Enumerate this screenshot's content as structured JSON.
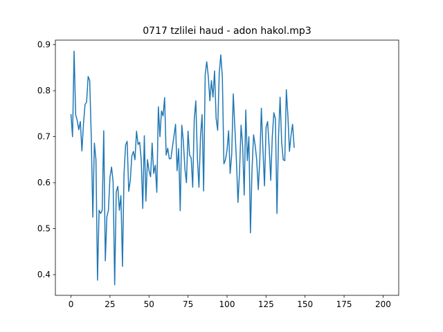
{
  "chart_data": {
    "type": "line",
    "title": "0717 tzlilei haud - adon hakol.mp3",
    "xlabel": "",
    "ylabel": "",
    "xlim": [
      -10,
      210
    ],
    "ylim": [
      0.355,
      0.91
    ],
    "x_ticks": [
      0,
      25,
      50,
      75,
      100,
      125,
      150,
      175,
      200
    ],
    "y_ticks": [
      0.4,
      0.5,
      0.6,
      0.7,
      0.8,
      0.9
    ],
    "x_tick_labels": [
      "0",
      "25",
      "50",
      "75",
      "100",
      "125",
      "150",
      "175",
      "200"
    ],
    "y_tick_labels": [
      "0.4",
      "0.5",
      "0.6",
      "0.7",
      "0.8",
      "0.9"
    ],
    "grid": false,
    "legend": "none",
    "series": [
      {
        "color": "#1f77b4",
        "x_start": 0,
        "x_step": 1,
        "values": [
          0.748,
          0.7,
          0.886,
          0.748,
          0.735,
          0.715,
          0.733,
          0.669,
          0.727,
          0.77,
          0.775,
          0.831,
          0.822,
          0.7,
          0.525,
          0.686,
          0.65,
          0.388,
          0.54,
          0.533,
          0.54,
          0.713,
          0.43,
          0.526,
          0.54,
          0.612,
          0.634,
          0.602,
          0.378,
          0.58,
          0.592,
          0.54,
          0.572,
          0.418,
          0.62,
          0.682,
          0.69,
          0.581,
          0.605,
          0.658,
          0.668,
          0.65,
          0.712,
          0.683,
          0.688,
          0.65,
          0.544,
          0.702,
          0.56,
          0.65,
          0.626,
          0.613,
          0.686,
          0.62,
          0.638,
          0.579,
          0.765,
          0.7,
          0.756,
          0.745,
          0.785,
          0.66,
          0.675,
          0.652,
          0.652,
          0.677,
          0.702,
          0.727,
          0.626,
          0.674,
          0.539,
          0.725,
          0.69,
          0.63,
          0.6,
          0.712,
          0.66,
          0.654,
          0.59,
          0.738,
          0.778,
          0.653,
          0.59,
          0.7,
          0.748,
          0.582,
          0.835,
          0.863,
          0.83,
          0.778,
          0.822,
          0.786,
          0.843,
          0.74,
          0.714,
          0.838,
          0.878,
          0.83,
          0.641,
          0.65,
          0.671,
          0.713,
          0.62,
          0.662,
          0.793,
          0.72,
          0.65,
          0.557,
          0.623,
          0.725,
          0.68,
          0.573,
          0.758,
          0.648,
          0.7,
          0.491,
          0.627,
          0.704,
          0.682,
          0.65,
          0.585,
          0.65,
          0.762,
          0.672,
          0.593,
          0.72,
          0.733,
          0.676,
          0.605,
          0.7,
          0.752,
          0.739,
          0.533,
          0.7,
          0.786,
          0.688,
          0.65,
          0.648,
          0.802,
          0.745,
          0.668,
          0.703,
          0.727,
          0.677
        ]
      }
    ]
  }
}
